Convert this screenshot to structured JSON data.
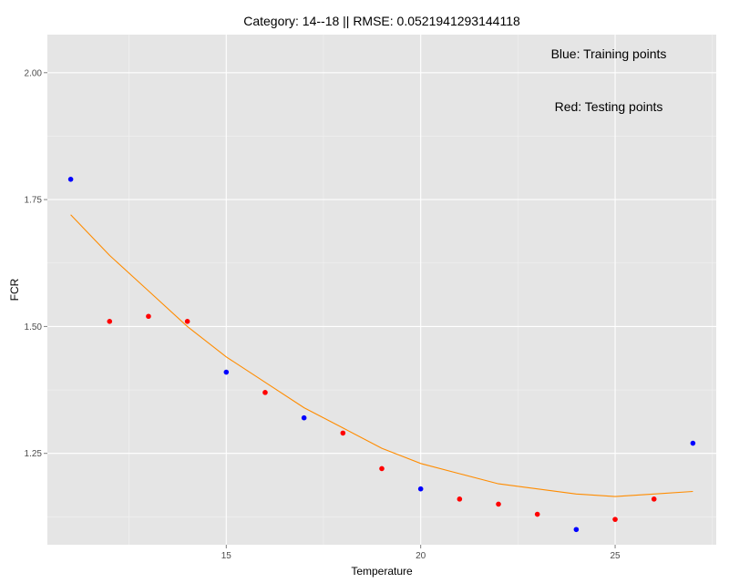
{
  "chart_data": {
    "type": "scatter",
    "title": "Category: 14--18 || RMSE: 0.0521941293144118",
    "xlabel": "Temperature",
    "ylabel": "FCR",
    "xlim": [
      10.4,
      27.6
    ],
    "ylim": [
      1.07,
      2.075
    ],
    "x_ticks": [
      15,
      20,
      25
    ],
    "x_tick_labels": [
      "15",
      "20",
      "25"
    ],
    "y_ticks": [
      1.25,
      1.5,
      1.75,
      2.0
    ],
    "y_tick_labels": [
      "1.25",
      "1.50",
      "1.75",
      "2.00"
    ],
    "grid": true,
    "background": "#e5e5e5",
    "gridline_color": "#ffffff",
    "annotations": [
      "Blue: Training points",
      "Red: Testing points"
    ],
    "series": [
      {
        "color": "#0000ff",
        "points": [
          {
            "x": 11,
            "y": 1.79
          },
          {
            "x": 15,
            "y": 1.41
          },
          {
            "x": 17,
            "y": 1.32
          },
          {
            "x": 20,
            "y": 1.18
          },
          {
            "x": 24,
            "y": 1.1
          },
          {
            "x": 27,
            "y": 1.27
          }
        ]
      },
      {
        "color": "#ff0000",
        "points": [
          {
            "x": 12,
            "y": 1.51
          },
          {
            "x": 13,
            "y": 1.52
          },
          {
            "x": 14,
            "y": 1.51
          },
          {
            "x": 16,
            "y": 1.37
          },
          {
            "x": 18,
            "y": 1.29
          },
          {
            "x": 19,
            "y": 1.22
          },
          {
            "x": 21,
            "y": 1.16
          },
          {
            "x": 22,
            "y": 1.15
          },
          {
            "x": 23,
            "y": 1.13
          },
          {
            "x": 25,
            "y": 1.12
          },
          {
            "x": 26,
            "y": 1.16
          }
        ]
      },
      {
        "type": "line",
        "color": "#ff8c00",
        "points": [
          {
            "x": 11,
            "y": 1.72
          },
          {
            "x": 12,
            "y": 1.64
          },
          {
            "x": 13,
            "y": 1.57
          },
          {
            "x": 14,
            "y": 1.5
          },
          {
            "x": 15,
            "y": 1.44
          },
          {
            "x": 16,
            "y": 1.39
          },
          {
            "x": 17,
            "y": 1.34
          },
          {
            "x": 18,
            "y": 1.3
          },
          {
            "x": 19,
            "y": 1.26
          },
          {
            "x": 20,
            "y": 1.23
          },
          {
            "x": 21,
            "y": 1.21
          },
          {
            "x": 22,
            "y": 1.19
          },
          {
            "x": 23,
            "y": 1.18
          },
          {
            "x": 24,
            "y": 1.17
          },
          {
            "x": 25,
            "y": 1.165
          },
          {
            "x": 26,
            "y": 1.17
          },
          {
            "x": 27,
            "y": 1.175
          }
        ]
      }
    ]
  }
}
